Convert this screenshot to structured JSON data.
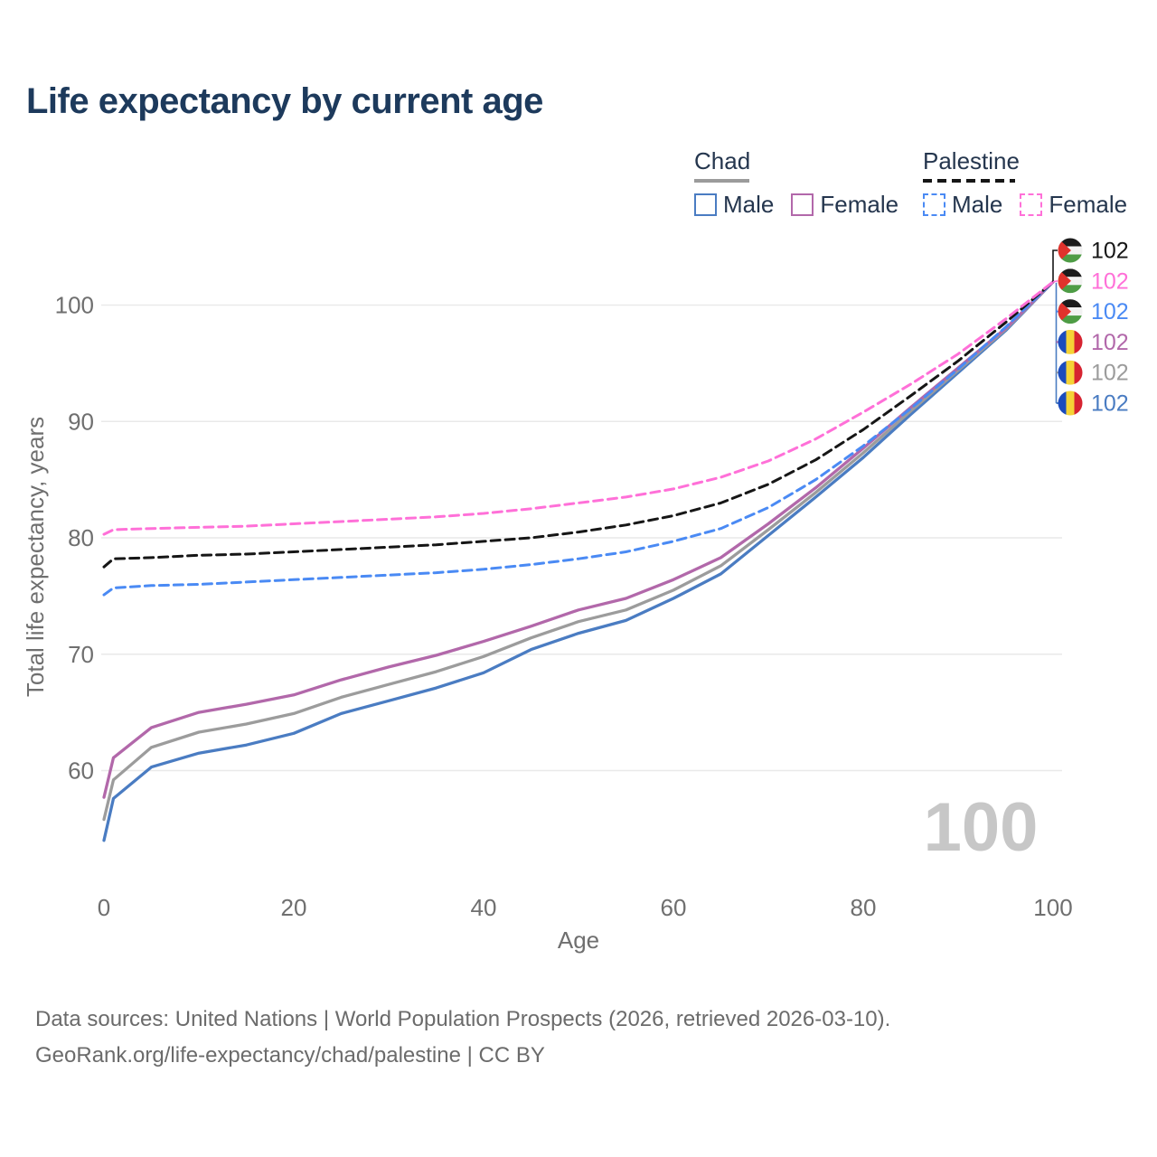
{
  "title": "Life expectancy by current age",
  "legend": {
    "groups": [
      {
        "name": "Chad",
        "line_style": "solid",
        "underline_color": "#9b9b9b",
        "items": [
          {
            "label": "Male",
            "color": "#4a7cc2"
          },
          {
            "label": "Female",
            "color": "#b268aa"
          }
        ]
      },
      {
        "name": "Palestine",
        "line_style": "dashed",
        "underline_color": "#161616",
        "items": [
          {
            "label": "Male",
            "color": "#4a8af4"
          },
          {
            "label": "Female",
            "color": "#ff70d8"
          }
        ]
      }
    ]
  },
  "chart_data": {
    "type": "line",
    "xlabel": "Age",
    "ylabel": "Total life expectancy, years",
    "x_ticks": [
      0,
      20,
      40,
      60,
      80,
      100
    ],
    "y_ticks": [
      60,
      70,
      80,
      90,
      100
    ],
    "xlim": [
      0,
      100
    ],
    "ylim": [
      53,
      103
    ],
    "grid": "horizontal",
    "watermark": "100",
    "x": [
      0,
      1,
      5,
      10,
      15,
      20,
      25,
      30,
      35,
      40,
      45,
      50,
      55,
      60,
      65,
      70,
      75,
      80,
      85,
      90,
      95,
      100
    ],
    "series": [
      {
        "name": "Chad Male",
        "color": "#4a7cc2",
        "dash": false,
        "values": [
          54.0,
          57.6,
          60.3,
          61.5,
          62.2,
          63.2,
          64.9,
          66.0,
          67.1,
          68.4,
          70.4,
          71.8,
          72.9,
          74.8,
          76.9,
          80.2,
          83.5,
          86.9,
          90.6,
          94.2,
          97.8,
          102
        ]
      },
      {
        "name": "Chad Total",
        "color": "#9c9c9c",
        "dash": false,
        "values": [
          55.8,
          59.2,
          62.0,
          63.3,
          64.0,
          64.9,
          66.3,
          67.4,
          68.5,
          69.8,
          71.4,
          72.8,
          73.8,
          75.5,
          77.6,
          80.7,
          83.9,
          87.3,
          90.9,
          94.4,
          97.9,
          102
        ]
      },
      {
        "name": "Chad Female",
        "color": "#b268aa",
        "dash": false,
        "values": [
          57.7,
          61.1,
          63.7,
          65.0,
          65.7,
          66.5,
          67.8,
          68.9,
          69.9,
          71.1,
          72.4,
          73.8,
          74.8,
          76.4,
          78.3,
          81.2,
          84.3,
          87.7,
          91.2,
          94.6,
          98.0,
          102
        ]
      },
      {
        "name": "Palestine Male",
        "color": "#4a8af4",
        "dash": true,
        "values": [
          75.1,
          75.7,
          75.9,
          76.0,
          76.2,
          76.4,
          76.6,
          76.8,
          77.0,
          77.3,
          77.7,
          78.2,
          78.8,
          79.7,
          80.8,
          82.6,
          85.0,
          87.9,
          91.1,
          94.5,
          98.1,
          102
        ]
      },
      {
        "name": "Palestine Total",
        "color": "#161616",
        "dash": true,
        "values": [
          77.5,
          78.2,
          78.3,
          78.5,
          78.6,
          78.8,
          79.0,
          79.2,
          79.4,
          79.7,
          80.0,
          80.5,
          81.1,
          81.9,
          83.0,
          84.6,
          86.7,
          89.3,
          92.2,
          95.2,
          98.5,
          102
        ]
      },
      {
        "name": "Palestine Female",
        "color": "#ff70d8",
        "dash": true,
        "values": [
          80.3,
          80.7,
          80.8,
          80.9,
          81.0,
          81.2,
          81.4,
          81.6,
          81.8,
          82.1,
          82.5,
          83.0,
          83.5,
          84.2,
          85.2,
          86.6,
          88.5,
          90.8,
          93.2,
          95.8,
          98.8,
          102
        ]
      }
    ]
  },
  "end_labels": {
    "rows": [
      {
        "flag": "palestine",
        "series": "Palestine Total",
        "value": "102",
        "color": "#161616"
      },
      {
        "flag": "palestine",
        "series": "Palestine Female",
        "value": "102",
        "color": "#ff70d8"
      },
      {
        "flag": "palestine",
        "series": "Palestine Male",
        "value": "102",
        "color": "#4a8af4"
      },
      {
        "flag": "chad",
        "series": "Chad Female",
        "value": "102",
        "color": "#b268aa"
      },
      {
        "flag": "chad",
        "series": "Chad Total",
        "value": "102",
        "color": "#9c9c9c"
      },
      {
        "flag": "chad",
        "series": "Chad Male",
        "value": "102",
        "color": "#4a7cc2"
      }
    ]
  },
  "flags": {
    "palestine": {
      "black": "#1b1b1b",
      "white": "#f2f2f2",
      "green": "#4e9c45",
      "red": "#e0322c"
    },
    "chad": {
      "blue": "#1a4bbd",
      "yellow": "#f5d336",
      "red": "#d62330"
    }
  },
  "footer": {
    "line1": "Data sources: United Nations | World Population Prospects (2026, retrieved 2026-03-10).",
    "line2": "GeoRank.org/life-expectancy/chad/palestine | CC BY"
  }
}
